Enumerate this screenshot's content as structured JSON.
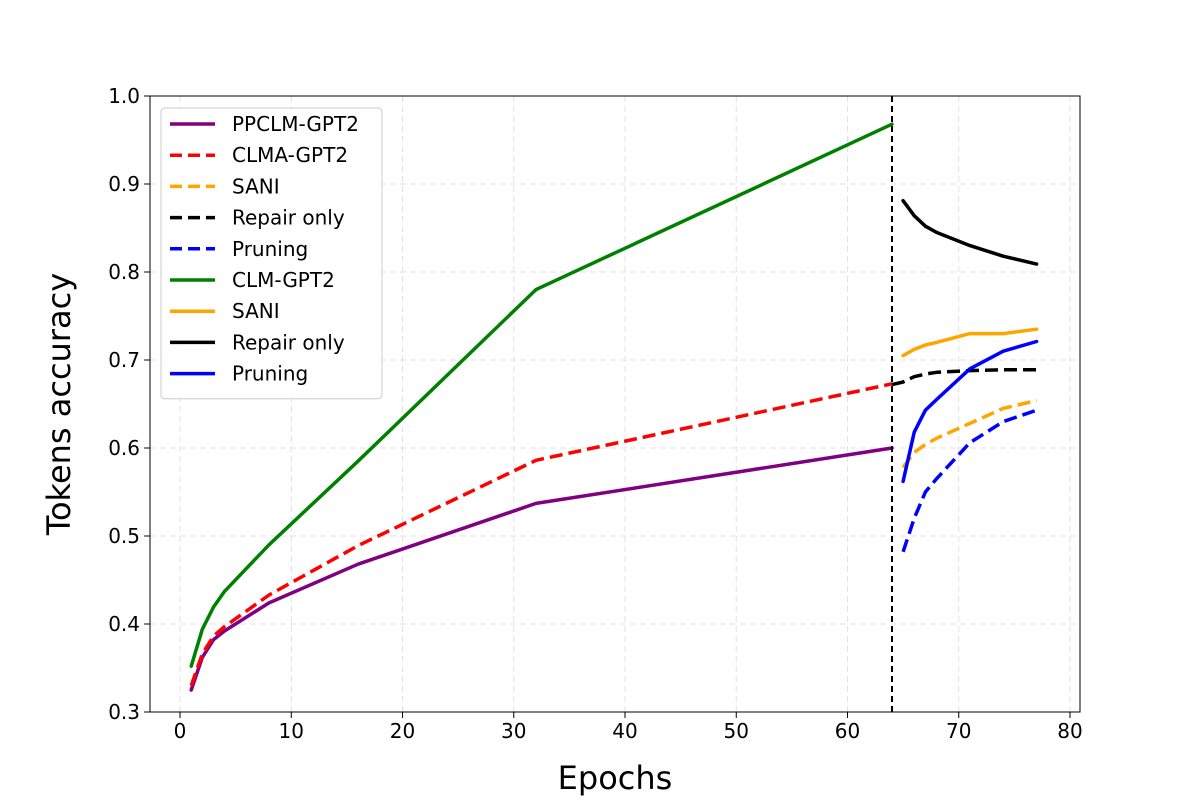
{
  "chart_data": {
    "type": "line",
    "title": "",
    "xlabel": "Epochs",
    "ylabel": "Tokens accuracy",
    "xlim": [
      -2.7,
      80.9
    ],
    "ylim": [
      0.3,
      1.0
    ],
    "xticks": [
      0,
      10,
      20,
      30,
      40,
      50,
      60,
      70,
      80
    ],
    "yticks": [
      0.3,
      0.4,
      0.5,
      0.6,
      0.7,
      0.8,
      0.9,
      1.0
    ],
    "ytick_labels": [
      "0.3",
      "0.4",
      "0.5",
      "0.6",
      "0.7",
      "0.8",
      "0.9",
      "1.0"
    ],
    "grid": true,
    "legend_position": "upper-left",
    "vline": {
      "x": 64,
      "style": "dashed",
      "color": "#000000"
    },
    "series": [
      {
        "name": "PPCLM-GPT2",
        "color": "#800080",
        "style": "solid",
        "x": [
          1,
          2,
          3,
          4,
          8,
          16,
          32,
          64
        ],
        "y": [
          0.325,
          0.362,
          0.382,
          0.392,
          0.424,
          0.468,
          0.537,
          0.6
        ]
      },
      {
        "name": "CLMA-GPT2",
        "color": "#ff0000",
        "style": "dashed",
        "x": [
          1,
          2,
          3,
          4,
          8,
          16,
          32,
          64
        ],
        "y": [
          0.33,
          0.366,
          0.386,
          0.397,
          0.433,
          0.489,
          0.586,
          0.673
        ]
      },
      {
        "name": "SANI",
        "color": "#ffa500",
        "style": "dashed",
        "x": [
          65,
          66,
          67,
          68,
          71,
          74,
          77
        ],
        "y": [
          0.578,
          0.595,
          0.604,
          0.611,
          0.628,
          0.645,
          0.654
        ]
      },
      {
        "name": "Repair only",
        "color": "#000000",
        "style": "dashed",
        "x": [
          64,
          65,
          66,
          67,
          68,
          71,
          74,
          77
        ],
        "y": [
          0.672,
          0.675,
          0.681,
          0.684,
          0.686,
          0.688,
          0.689,
          0.689
        ]
      },
      {
        "name": "Pruning",
        "color": "#0000ff",
        "style": "dashed",
        "x": [
          65,
          66,
          67,
          68,
          71,
          74,
          77
        ],
        "y": [
          0.482,
          0.52,
          0.55,
          0.565,
          0.606,
          0.63,
          0.643
        ]
      },
      {
        "name": "CLM-GPT2",
        "color": "#008000",
        "style": "solid",
        "x": [
          1,
          2,
          3,
          4,
          8,
          16,
          32,
          64
        ],
        "y": [
          0.352,
          0.394,
          0.419,
          0.437,
          0.49,
          0.585,
          0.78,
          0.968
        ]
      },
      {
        "name": "SANI",
        "color": "#ffa500",
        "style": "solid",
        "x": [
          65,
          66,
          67,
          68,
          71,
          74,
          77
        ],
        "y": [
          0.705,
          0.712,
          0.717,
          0.72,
          0.73,
          0.73,
          0.735
        ]
      },
      {
        "name": "Repair only",
        "color": "#000000",
        "style": "solid",
        "x": [
          65,
          66,
          67,
          68,
          71,
          74,
          77
        ],
        "y": [
          0.881,
          0.864,
          0.852,
          0.845,
          0.83,
          0.818,
          0.809
        ]
      },
      {
        "name": "Pruning",
        "color": "#0000ff",
        "style": "solid",
        "x": [
          65,
          66,
          67,
          68,
          71,
          74,
          77
        ],
        "y": [
          0.562,
          0.618,
          0.643,
          0.655,
          0.69,
          0.71,
          0.721
        ]
      }
    ]
  }
}
